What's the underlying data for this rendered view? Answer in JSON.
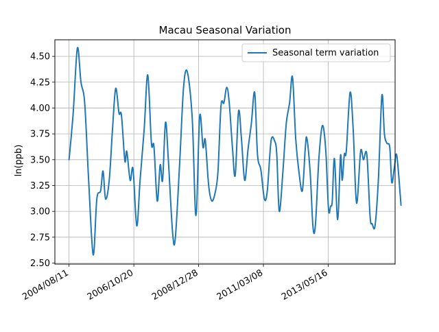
{
  "chart_data": {
    "type": "line",
    "title": "Macau Seasonal Variation",
    "xlabel": "",
    "ylabel": "ln(ppb)",
    "ylim": [
      2.49,
      4.66
    ],
    "xlim": [
      "2004/02/18",
      "2015/08/20"
    ],
    "grid": true,
    "legend_placement": "top-right",
    "x_ticks": [
      "2004/08/11",
      "2006/10/20",
      "2008/12/28",
      "2011/03/08",
      "2013/05/16"
    ],
    "y_ticks": [
      2.5,
      2.75,
      3.0,
      3.25,
      3.5,
      3.75,
      4.0,
      4.25,
      4.5
    ],
    "series": [
      {
        "name": "Seasonal term variation",
        "color": "#1f77b4",
        "points": [
          [
            "2004/08/11",
            3.5
          ],
          [
            "2004/10/01",
            3.95
          ],
          [
            "2004/11/22",
            4.58
          ],
          [
            "2005/01/05",
            4.25
          ],
          [
            "2005/02/20",
            4.05
          ],
          [
            "2005/04/10",
            3.3
          ],
          [
            "2005/06/05",
            2.58
          ],
          [
            "2005/07/20",
            3.12
          ],
          [
            "2005/09/05",
            3.2
          ],
          [
            "2005/10/05",
            3.39
          ],
          [
            "2005/11/05",
            3.12
          ],
          [
            "2005/12/20",
            3.3
          ],
          [
            "2006/01/30",
            3.8
          ],
          [
            "2006/03/10",
            4.19
          ],
          [
            "2006/04/20",
            3.95
          ],
          [
            "2006/05/20",
            3.93
          ],
          [
            "2006/07/01",
            3.49
          ],
          [
            "2006/07/25",
            3.58
          ],
          [
            "2006/09/05",
            3.3
          ],
          [
            "2006/10/10",
            3.41
          ],
          [
            "2006/11/25",
            2.86
          ],
          [
            "2007/01/05",
            3.3
          ],
          [
            "2007/02/25",
            3.8
          ],
          [
            "2007/04/10",
            4.32
          ],
          [
            "2007/05/25",
            3.66
          ],
          [
            "2007/06/25",
            3.63
          ],
          [
            "2007/08/05",
            3.1
          ],
          [
            "2007/09/10",
            3.45
          ],
          [
            "2007/10/10",
            3.3
          ],
          [
            "2007/11/15",
            3.86
          ],
          [
            "2007/12/20",
            3.5
          ],
          [
            "2008/02/10",
            2.8
          ],
          [
            "2008/03/15",
            2.74
          ],
          [
            "2008/05/10",
            3.5
          ],
          [
            "2008/06/25",
            4.2
          ],
          [
            "2008/08/10",
            4.35
          ],
          [
            "2008/10/10",
            3.9
          ],
          [
            "2008/11/25",
            2.96
          ],
          [
            "2009/01/10",
            3.92
          ],
          [
            "2009/02/20",
            3.62
          ],
          [
            "2009/03/20",
            3.69
          ],
          [
            "2009/05/01",
            3.25
          ],
          [
            "2009/06/10",
            3.1
          ],
          [
            "2009/07/25",
            3.2
          ],
          [
            "2009/08/25",
            3.4
          ],
          [
            "2009/09/30",
            4.02
          ],
          [
            "2009/11/05",
            4.05
          ],
          [
            "2009/12/10",
            4.2
          ],
          [
            "2010/01/10",
            4.05
          ],
          [
            "2010/02/20",
            3.6
          ],
          [
            "2010/03/25",
            3.35
          ],
          [
            "2010/05/05",
            3.97
          ],
          [
            "2010/06/10",
            3.7
          ],
          [
            "2010/07/20",
            3.3
          ],
          [
            "2010/08/30",
            3.6
          ],
          [
            "2010/10/10",
            3.85
          ],
          [
            "2010/11/20",
            4.15
          ],
          [
            "2010/12/25",
            3.55
          ],
          [
            "2011/02/05",
            3.4
          ],
          [
            "2011/03/20",
            3.12
          ],
          [
            "2011/04/25",
            3.2
          ],
          [
            "2011/06/10",
            3.68
          ],
          [
            "2011/07/25",
            3.68
          ],
          [
            "2011/08/20",
            3.55
          ],
          [
            "2011/09/20",
            3.0
          ],
          [
            "2011/11/05",
            3.4
          ],
          [
            "2011/12/15",
            3.85
          ],
          [
            "2012/01/25",
            4.05
          ],
          [
            "2012/03/01",
            4.3
          ],
          [
            "2012/04/10",
            3.7
          ],
          [
            "2012/05/20",
            3.38
          ],
          [
            "2012/07/01",
            3.2
          ],
          [
            "2012/08/05",
            3.6
          ],
          [
            "2012/08/25",
            3.71
          ],
          [
            "2012/10/05",
            3.38
          ],
          [
            "2012/11/10",
            2.84
          ],
          [
            "2012/12/10",
            2.88
          ],
          [
            "2013/01/20",
            3.5
          ],
          [
            "2013/03/05",
            3.83
          ],
          [
            "2013/04/15",
            3.6
          ],
          [
            "2013/05/20",
            3.02
          ],
          [
            "2013/06/15",
            3.05
          ],
          [
            "2013/07/05",
            3.1
          ],
          [
            "2013/08/01",
            3.51
          ],
          [
            "2013/09/10",
            2.92
          ],
          [
            "2013/10/15",
            3.54
          ],
          [
            "2013/11/05",
            3.3
          ],
          [
            "2013/12/01",
            3.55
          ],
          [
            "2013/12/25",
            3.58
          ],
          [
            "2014/02/10",
            4.15
          ],
          [
            "2014/03/20",
            3.8
          ],
          [
            "2014/05/01",
            3.08
          ],
          [
            "2014/06/20",
            3.58
          ],
          [
            "2014/07/25",
            3.5
          ],
          [
            "2014/09/05",
            3.55
          ],
          [
            "2014/10/15",
            2.95
          ],
          [
            "2014/11/10",
            2.88
          ],
          [
            "2014/12/15",
            2.86
          ],
          [
            "2015/01/25",
            3.3
          ],
          [
            "2015/03/10",
            4.12
          ],
          [
            "2015/04/10",
            3.75
          ],
          [
            "2015/05/10",
            3.66
          ],
          [
            "2015/06/15",
            3.62
          ],
          [
            "2015/07/10",
            3.28
          ],
          [
            "2015/08/10",
            3.42
          ],
          [
            "2015/09/10",
            3.54
          ],
          [
            "2015/11/01",
            3.06
          ]
        ]
      }
    ]
  }
}
